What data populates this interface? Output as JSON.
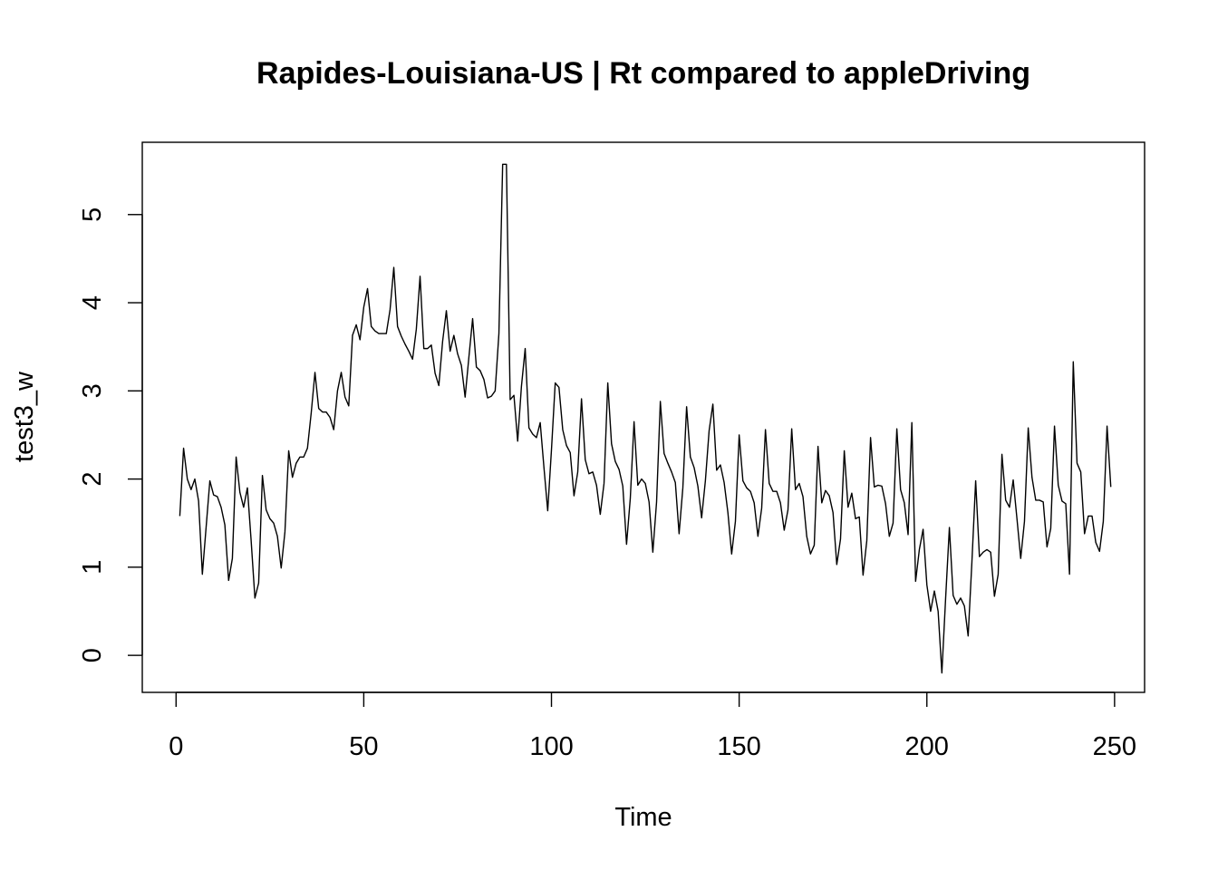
{
  "chart_data": {
    "type": "line",
    "title": "Rapides-Louisiana-US | Rt compared to appleDriving",
    "xlabel": "Time",
    "ylabel": "test3_w",
    "xlim": [
      -9,
      258
    ],
    "ylim": [
      -0.42,
      5.82
    ],
    "xticks": [
      0,
      50,
      100,
      150,
      200,
      250
    ],
    "yticks": [
      0,
      1,
      2,
      3,
      4,
      5
    ],
    "grid": false,
    "legend": "none",
    "series": [
      {
        "color": "#000000",
        "x_start": 1,
        "values": [
          1.58,
          2.35,
          2.0,
          1.88,
          2.0,
          1.75,
          0.92,
          1.45,
          1.98,
          1.82,
          1.8,
          1.68,
          1.48,
          0.85,
          1.1,
          2.25,
          1.85,
          1.68,
          1.9,
          1.3,
          0.65,
          0.82,
          2.04,
          1.65,
          1.55,
          1.5,
          1.35,
          0.99,
          1.4,
          2.32,
          2.02,
          2.18,
          2.25,
          2.25,
          2.35,
          2.75,
          3.21,
          2.8,
          2.76,
          2.76,
          2.7,
          2.56,
          3.0,
          3.21,
          2.93,
          2.83,
          3.63,
          3.75,
          3.58,
          3.95,
          4.16,
          3.73,
          3.68,
          3.65,
          3.65,
          3.65,
          3.92,
          4.4,
          3.73,
          3.62,
          3.53,
          3.45,
          3.36,
          3.7,
          4.3,
          3.48,
          3.48,
          3.52,
          3.2,
          3.06,
          3.56,
          3.91,
          3.45,
          3.63,
          3.42,
          3.29,
          2.93,
          3.38,
          3.82,
          3.27,
          3.23,
          3.13,
          2.92,
          2.94,
          3.0,
          3.65,
          5.57,
          5.57,
          2.9,
          2.95,
          2.43,
          3.05,
          3.48,
          2.58,
          2.51,
          2.47,
          2.64,
          2.13,
          1.64,
          2.33,
          3.09,
          3.04,
          2.56,
          2.38,
          2.3,
          1.81,
          2.08,
          2.91,
          2.22,
          2.06,
          2.08,
          1.93,
          1.6,
          1.95,
          3.09,
          2.4,
          2.2,
          2.11,
          1.92,
          1.26,
          1.78,
          2.65,
          1.93,
          2.0,
          1.95,
          1.74,
          1.17,
          1.74,
          2.88,
          2.29,
          2.18,
          2.08,
          1.96,
          1.38,
          1.9,
          2.82,
          2.25,
          2.13,
          1.92,
          1.56,
          1.98,
          2.55,
          2.85,
          2.1,
          2.16,
          1.96,
          1.62,
          1.15,
          1.52,
          2.5,
          1.98,
          1.9,
          1.86,
          1.73,
          1.35,
          1.67,
          2.56,
          1.95,
          1.86,
          1.86,
          1.73,
          1.42,
          1.65,
          2.57,
          1.88,
          1.95,
          1.8,
          1.35,
          1.15,
          1.25,
          2.37,
          1.73,
          1.87,
          1.81,
          1.62,
          1.03,
          1.32,
          2.32,
          1.68,
          1.84,
          1.55,
          1.57,
          0.91,
          1.3,
          2.47,
          1.91,
          1.93,
          1.92,
          1.72,
          1.35,
          1.5,
          2.57,
          1.88,
          1.73,
          1.37,
          2.64,
          0.84,
          1.2,
          1.43,
          0.8,
          0.5,
          0.73,
          0.5,
          -0.2,
          0.65,
          1.45,
          0.68,
          0.58,
          0.65,
          0.56,
          0.22,
          1.06,
          1.98,
          1.12,
          1.17,
          1.2,
          1.17,
          0.67,
          0.92,
          2.28,
          1.76,
          1.68,
          1.99,
          1.55,
          1.1,
          1.52,
          2.58,
          2.02,
          1.76,
          1.76,
          1.74,
          1.23,
          1.44,
          2.6,
          1.93,
          1.75,
          1.72,
          0.92,
          3.33,
          2.18,
          2.08,
          1.38,
          1.58,
          1.58,
          1.28,
          1.18,
          1.52,
          2.6,
          1.91
        ]
      }
    ]
  }
}
